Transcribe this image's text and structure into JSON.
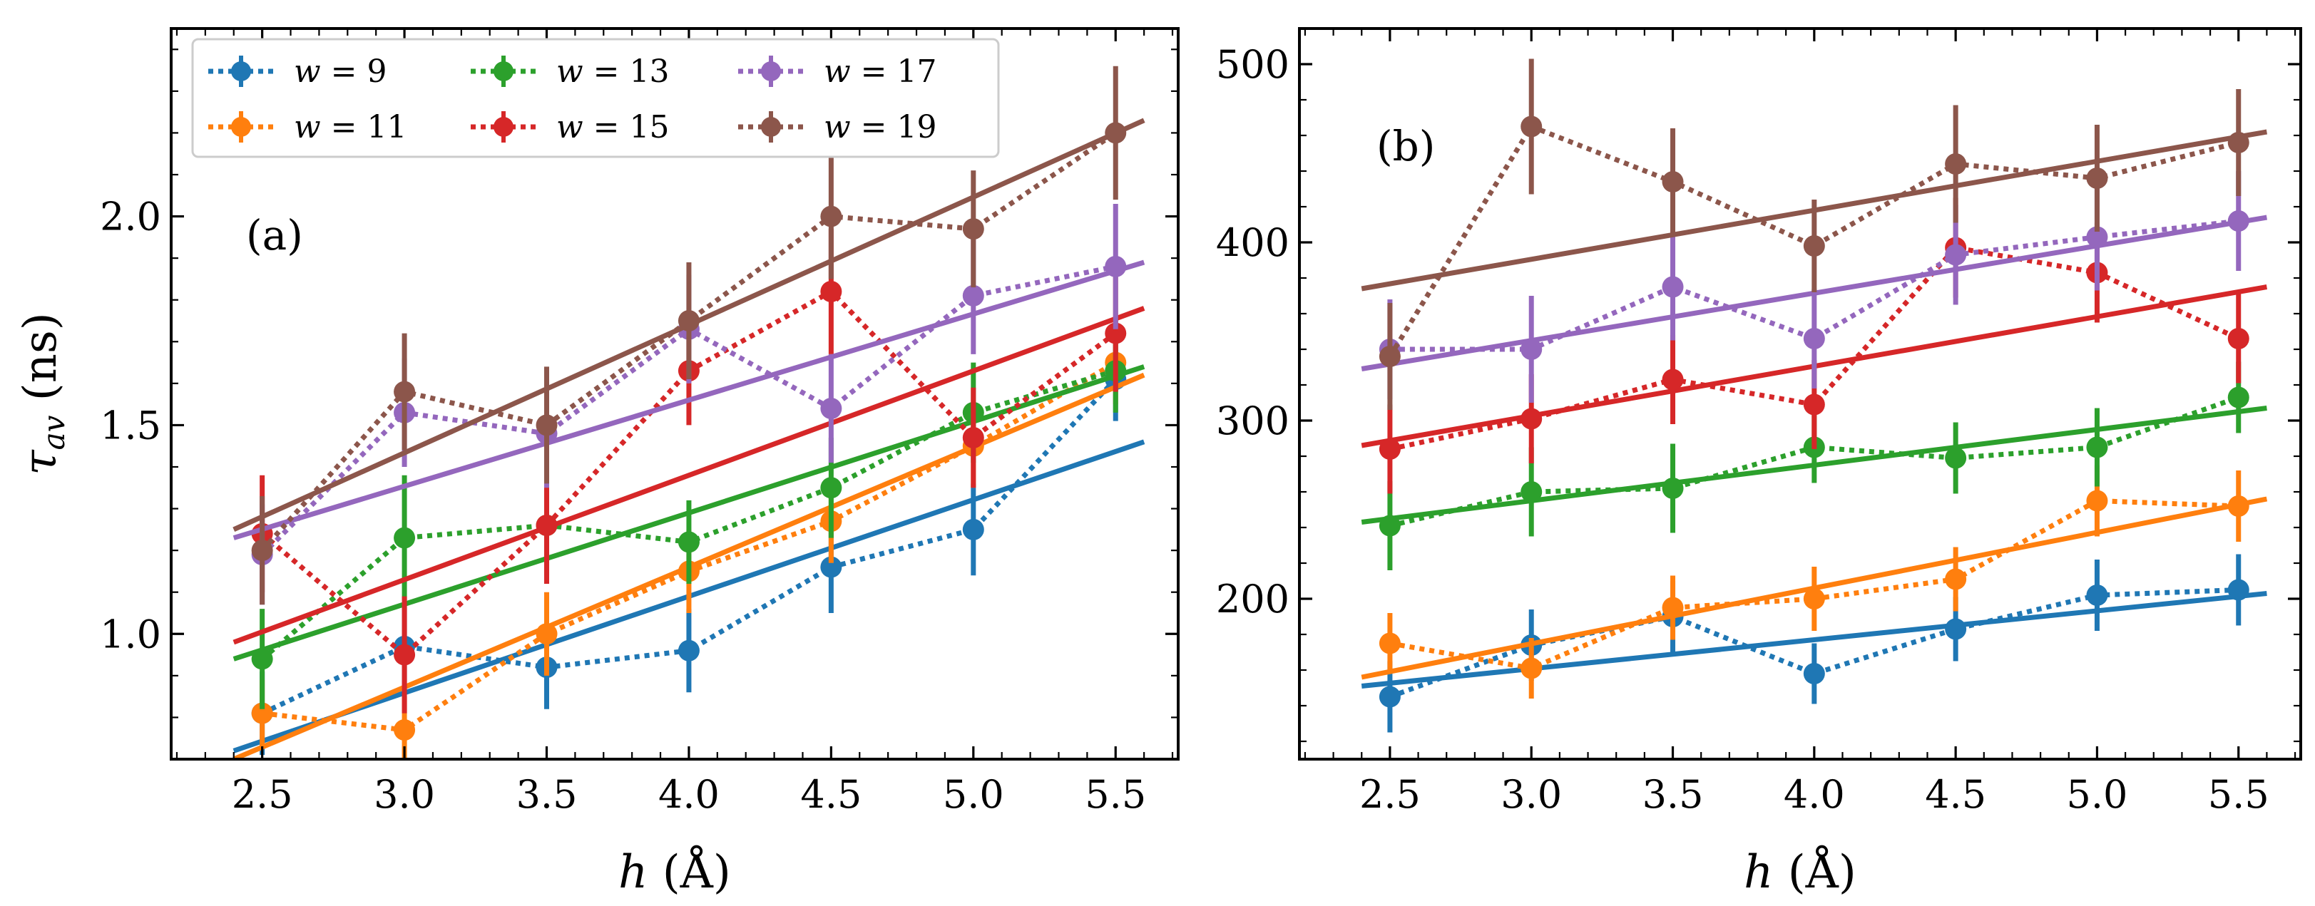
{
  "figure": {
    "description_none": ""
  },
  "chart_data": [
    {
      "type": "line",
      "panel_label": "(a)",
      "xlabel": "h (Å)",
      "ylabel": "τ_av (ns)",
      "ylabel_main": "τ",
      "ylabel_sub": "av",
      "ylabel_unit": " (ns)",
      "xlabel_main": "h",
      "xlabel_unit": " (Å)",
      "xlim": [
        2.18,
        5.72
      ],
      "ylim": [
        0.7,
        2.45
      ],
      "x_ticks": [
        2.5,
        3.0,
        3.5,
        4.0,
        4.5,
        5.0,
        5.5
      ],
      "x_tick_labels": [
        "2.5",
        "3.0",
        "3.5",
        "4.0",
        "4.5",
        "5.0",
        "5.5"
      ],
      "y_ticks": [
        1.0,
        1.5,
        2.0
      ],
      "y_tick_labels": [
        "1.0",
        "1.5",
        "2.0"
      ],
      "x_minor_step": 0.1,
      "y_minor_step": 0.1,
      "x": [
        2.5,
        3.0,
        3.5,
        4.0,
        4.5,
        5.0,
        5.5
      ],
      "fit_x_range": [
        2.4,
        5.6
      ],
      "legend_position": "top-left",
      "series": [
        {
          "name": "w = 9",
          "label_main": "w",
          "label_eq": " = 9",
          "color": "#1f77b4",
          "values": [
            0.81,
            0.97,
            0.92,
            0.96,
            1.16,
            1.25,
            1.61
          ],
          "errors": [
            0.1,
            0.1,
            0.1,
            0.1,
            0.11,
            0.11,
            0.1
          ],
          "fit": [
            0.72,
            1.46
          ]
        },
        {
          "name": "w = 11",
          "label_main": "w",
          "label_eq": " = 11",
          "color": "#ff7f0e",
          "values": [
            0.81,
            0.77,
            1.0,
            1.15,
            1.27,
            1.45,
            1.65
          ],
          "errors": [
            0.08,
            0.08,
            0.1,
            0.1,
            0.1,
            0.1,
            0.1
          ],
          "fit": [
            0.7,
            1.62
          ]
        },
        {
          "name": "w = 13",
          "label_main": "w",
          "label_eq": " = 13",
          "color": "#2ca02c",
          "values": [
            0.94,
            1.23,
            1.26,
            1.22,
            1.35,
            1.53,
            1.63
          ],
          "errors": [
            0.12,
            0.15,
            0.12,
            0.1,
            0.12,
            0.12,
            0.1
          ],
          "fit": [
            0.94,
            1.64
          ]
        },
        {
          "name": "w = 15",
          "label_main": "w",
          "label_eq": " = 15",
          "color": "#d62728",
          "values": [
            1.24,
            0.95,
            1.26,
            1.63,
            1.82,
            1.47,
            1.72
          ],
          "errors": [
            0.14,
            0.14,
            0.14,
            0.13,
            0.15,
            0.12,
            0.14
          ],
          "fit": [
            0.98,
            1.78
          ]
        },
        {
          "name": "w = 17",
          "label_main": "w",
          "label_eq": " = 17",
          "color": "#9467bd",
          "values": [
            1.19,
            1.53,
            1.48,
            1.73,
            1.54,
            1.81,
            1.88
          ],
          "errors": [
            0.12,
            0.13,
            0.13,
            0.13,
            0.13,
            0.14,
            0.15
          ],
          "fit": [
            1.23,
            1.89
          ]
        },
        {
          "name": "w = 19",
          "label_main": "w",
          "label_eq": " = 19",
          "color": "#8c564b",
          "values": [
            1.2,
            1.58,
            1.5,
            1.75,
            2.0,
            1.97,
            2.2
          ],
          "errors": [
            0.13,
            0.14,
            0.14,
            0.14,
            0.15,
            0.14,
            0.16
          ],
          "fit": [
            1.25,
            2.23
          ]
        }
      ]
    },
    {
      "type": "line",
      "panel_label": "(b)",
      "xlabel": "h (Å)",
      "xlabel_main": "h",
      "xlabel_unit": " (Å)",
      "ylabel": "",
      "xlim": [
        2.18,
        5.72
      ],
      "ylim": [
        110,
        520
      ],
      "x_ticks": [
        2.5,
        3.0,
        3.5,
        4.0,
        4.5,
        5.0,
        5.5
      ],
      "x_tick_labels": [
        "2.5",
        "3.0",
        "3.5",
        "4.0",
        "4.5",
        "5.0",
        "5.5"
      ],
      "y_ticks": [
        200,
        300,
        400,
        500
      ],
      "y_tick_labels": [
        "200",
        "300",
        "400",
        "500"
      ],
      "x_minor_step": 0.1,
      "y_minor_step": 20,
      "x": [
        2.5,
        3.0,
        3.5,
        4.0,
        4.5,
        5.0,
        5.5
      ],
      "fit_x_range": [
        2.4,
        5.6
      ],
      "series": [
        {
          "name": "w = 9",
          "color": "#1f77b4",
          "values": [
            145,
            174,
            190,
            158,
            183,
            202,
            205
          ],
          "errors": [
            20,
            20,
            20,
            17,
            18,
            20,
            20
          ],
          "fit": [
            151,
            203
          ]
        },
        {
          "name": "w = 11",
          "color": "#ff7f0e",
          "values": [
            175,
            161,
            195,
            200,
            211,
            255,
            252
          ],
          "errors": [
            17,
            17,
            18,
            18,
            18,
            20,
            20
          ],
          "fit": [
            156,
            256
          ]
        },
        {
          "name": "w = 13",
          "color": "#2ca02c",
          "values": [
            241,
            260,
            262,
            285,
            279,
            285,
            313
          ],
          "errors": [
            25,
            25,
            25,
            20,
            20,
            22,
            20
          ],
          "fit": [
            243,
            307
          ]
        },
        {
          "name": "w = 15",
          "color": "#d62728",
          "values": [
            284,
            301,
            323,
            309,
            397,
            383,
            346
          ],
          "errors": [
            25,
            25,
            25,
            25,
            28,
            28,
            25
          ],
          "fit": [
            286,
            375
          ]
        },
        {
          "name": "w = 17",
          "color": "#9467bd",
          "values": [
            340,
            340,
            375,
            346,
            393,
            403,
            412
          ],
          "errors": [
            28,
            30,
            30,
            28,
            28,
            30,
            28
          ],
          "fit": [
            329,
            414
          ]
        },
        {
          "name": "w = 19",
          "color": "#8c564b",
          "values": [
            336,
            465,
            434,
            398,
            444,
            436,
            456
          ],
          "errors": [
            30,
            38,
            30,
            26,
            33,
            30,
            30
          ],
          "fit": [
            374,
            462
          ]
        }
      ]
    }
  ]
}
